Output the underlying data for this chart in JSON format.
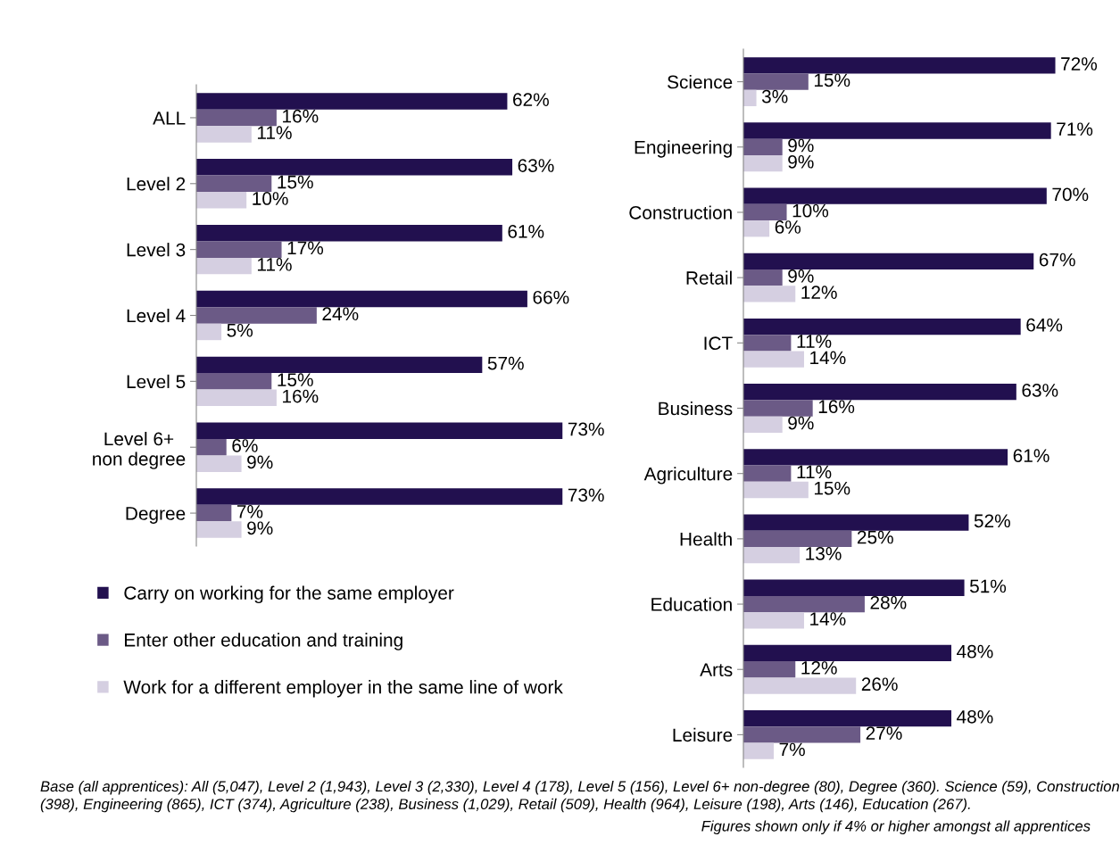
{
  "chart_data": [
    {
      "type": "bar",
      "orientation": "horizontal",
      "legend": "bottom",
      "categories": [
        "ALL",
        "Level 2",
        "Level 3",
        "Level 4",
        "Level 5",
        "Level 6+\nnon degree",
        "Degree"
      ],
      "series": [
        {
          "name": "Carry on working for the same employer",
          "color": "#22104f",
          "values": [
            62,
            63,
            61,
            66,
            57,
            73,
            73
          ],
          "value_labels": [
            "62%",
            "63%",
            "61%",
            "66%",
            "57%",
            "73%",
            "73%"
          ]
        },
        {
          "name": "Enter other education and training",
          "color": "#6b5a86",
          "values": [
            16,
            15,
            17,
            24,
            15,
            6,
            7
          ],
          "value_labels": [
            "16%",
            "15%",
            "17%",
            "24%",
            "15%",
            "6%",
            "7%"
          ]
        },
        {
          "name": "Work for a different employer in the same line of work",
          "color": "#d5cfe1",
          "values": [
            11,
            10,
            11,
            5,
            16,
            9,
            9
          ],
          "value_labels": [
            "11%",
            "10%",
            "11%",
            "5%",
            "16%",
            "9%",
            "9%"
          ]
        }
      ]
    },
    {
      "type": "bar",
      "orientation": "horizontal",
      "legend": false,
      "categories": [
        "Science",
        "Engineering",
        "Construction",
        "Retail",
        "ICT",
        "Business",
        "Agriculture",
        "Health",
        "Education",
        "Arts",
        "Leisure"
      ],
      "series": [
        {
          "color": "#22104f",
          "values": [
            72,
            71,
            70,
            67,
            64,
            63,
            61,
            52,
            51,
            48,
            48
          ],
          "value_labels": [
            "72%",
            "71%",
            "70%",
            "67%",
            "64%",
            "63%",
            "61%",
            "52%",
            "51%",
            "48%",
            "48%"
          ]
        },
        {
          "color": "#6b5a86",
          "values": [
            15,
            9,
            10,
            9,
            11,
            16,
            11,
            25,
            28,
            12,
            27
          ],
          "value_labels": [
            "15%",
            "9%",
            "10%",
            "9%",
            "11%",
            "16%",
            "11%",
            "25%",
            "28%",
            "12%",
            "27%"
          ]
        },
        {
          "color": "#d5cfe1",
          "values": [
            3,
            9,
            6,
            12,
            14,
            9,
            15,
            13,
            14,
            26,
            7
          ],
          "value_labels": [
            "3%",
            "9%",
            "6%",
            "12%",
            "14%",
            "9%",
            "15%",
            "13%",
            "14%",
            "26%",
            "7%"
          ]
        }
      ],
      "annotations": [
        "Base (all apprentices): All (5,047), Level 2 (1,943), Level 3 (2,330), Level 4 (178), Level 5 (156), Level 6+ non-degree (80), Degree (360). Science (59), Construction (398), Engineering (865), ICT (374), Agriculture (238), Business (1,029), Retail (509), Health (964), Leisure (198), Arts (146), Education (267).",
        "Figures shown only if 4% or higher amongst all apprentices"
      ]
    }
  ]
}
